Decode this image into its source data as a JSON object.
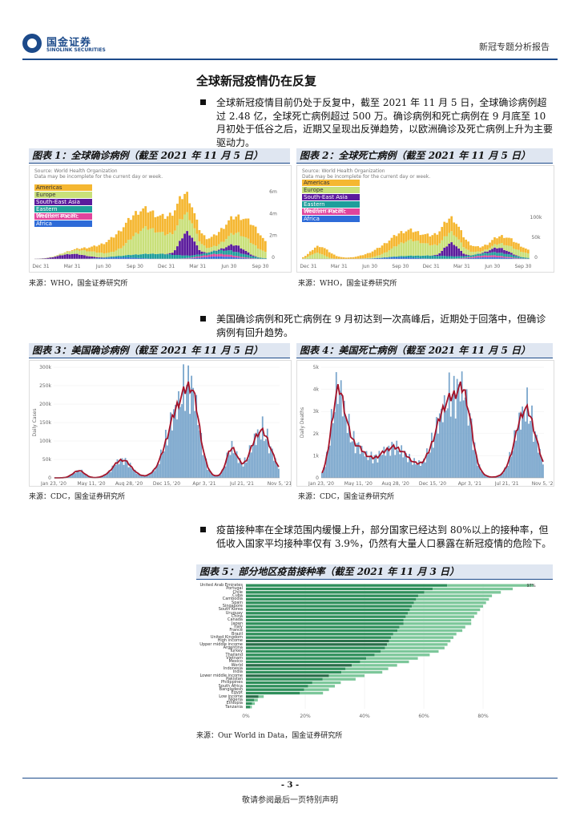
{
  "header": {
    "brand_cn": "国金证券",
    "brand_en": "SINOLINK SECURITIES",
    "report_type": "新冠专题分析报告"
  },
  "section_title": "全球新冠疫情仍在反复",
  "bullets": [
    "全球新冠疫情目前仍处于反复中，截至 2021 年 11 月 5 日，全球确诊病例超过 2.48 亿，全球死亡病例超过 500 万。确诊病例和死亡病例在 9 月底至 10 月初处于低谷之后，近期又呈现出反弹趋势，以欧洲确诊及死亡病例上升为主要驱动力。",
    "美国确诊病例和死亡病例在 9 月初达到一次高峰后，近期处于回落中，但确诊病例有回升趋势。",
    "疫苗接种率在全球范围内缓慢上升，部分国家已经达到 80%以上的接种率，但低收入国家平均接种率仅有 3.9%，仍然有大量人口暴露在新冠疫情的危险下。"
  ],
  "figures": {
    "fig1": {
      "title": "图表 1：全球确诊病例（截至 2021 年 11 月 5 日）",
      "source": "来源：WHO，国金证券研究所",
      "chart_source": "Source: World Health Organization",
      "chart_note": "Data may be incomplete for the current day or week.",
      "x_ticks": [
        "Dec 31",
        "Mar 31",
        "Jun 30",
        "Sep 30",
        "Dec 31",
        "Mar 31",
        "Jun 30",
        "Sep 30"
      ],
      "y_ticks": [
        "6m",
        "4m",
        "2m",
        "0"
      ]
    },
    "fig2": {
      "title": "图表 2：全球死亡病例（截至 2021 年 11 月 5 日）",
      "source": "来源：WHO，国金证券研究所",
      "chart_source": "Source: World Health Organization",
      "chart_note": "Data may be incomplete for the current day or week.",
      "x_ticks": [
        "Dec 31",
        "Mar 31",
        "Jun 30",
        "Sep 30",
        "Dec 31",
        "Mar 31",
        "Jun 30",
        "Sep 30"
      ],
      "y_ticks": [
        "100k",
        "50k",
        "0"
      ]
    },
    "fig3": {
      "title": "图表 3：美国确诊病例（截至 2021 年 11 月 5 日）",
      "source": "来源：CDC，国金证券研究所",
      "ylabel": "Daily Cases",
      "x_ticks": [
        "Jan 23, '20",
        "May 11, '20",
        "Aug 28, '20",
        "Dec 15, '20",
        "Apr 3, '21",
        "Jul 21, '21",
        "Nov 5, '21"
      ],
      "y_ticks": [
        "300k",
        "250k",
        "200k",
        "150k",
        "100k",
        "50k",
        "0"
      ]
    },
    "fig4": {
      "title": "图表 4：美国死亡病例（截至 2021 年 11 月 5 日）",
      "source": "来源：CDC，国金证券研究所",
      "ylabel": "Daily Deaths",
      "x_ticks": [
        "Jan 23, '20",
        "May 11, '20",
        "Aug 28, '20",
        "Dec 15, '20",
        "Apr 3, '21",
        "Jul 21, '21",
        "Nov 5, '21"
      ],
      "y_ticks": [
        "5k",
        "4k",
        "3k",
        "2k",
        "1k",
        "0"
      ]
    },
    "fig5": {
      "title": "图表 5：部分地区疫苗接种率（截至 2021 年 11 月 3 日）",
      "source": "来源：Our World in Data，国金证券研究所",
      "x_ticks": [
        "0%",
        "20%",
        "40%",
        "60%",
        "80%"
      ]
    }
  },
  "legend": [
    {
      "name": "Americas",
      "color": "#f5b731"
    },
    {
      "name": "Europe",
      "color": "#c9e07a"
    },
    {
      "name": "South-East Asia",
      "color": "#5b1b9c"
    },
    {
      "name": "Eastern Mediterranean",
      "color": "#1e9e9b"
    },
    {
      "name": "Western Pacific",
      "color": "#e0449c"
    },
    {
      "name": "Africa",
      "color": "#2e6bd8"
    }
  ],
  "vaccine": {
    "countries": [
      "United Arab Emirates",
      "Portugal",
      "Chile",
      "Cuba",
      "Cambodia",
      "Spain",
      "Singapore",
      "South Korea",
      "Uruguay",
      "China",
      "Canada",
      "Japan",
      "Italy",
      "France",
      "Brazil",
      "United Kingdom",
      "High income",
      "Upper middle income",
      "Argentina",
      "Turkey",
      "Thailand",
      "Vietnam",
      "Mexico",
      "World",
      "Indonesia",
      "India",
      "Lower middle income",
      "Pakistan",
      "Philippines",
      "South Africa",
      "Bangladesh",
      "Egypt",
      "Low income",
      "Nigeria",
      "Ethiopia",
      "Tanzania"
    ],
    "top_label": "97%",
    "bar_color": "#2f8f5b"
  },
  "footer": {
    "page": "- 3 -",
    "disclaimer": "敬请参阅最后一页特别声明"
  }
}
